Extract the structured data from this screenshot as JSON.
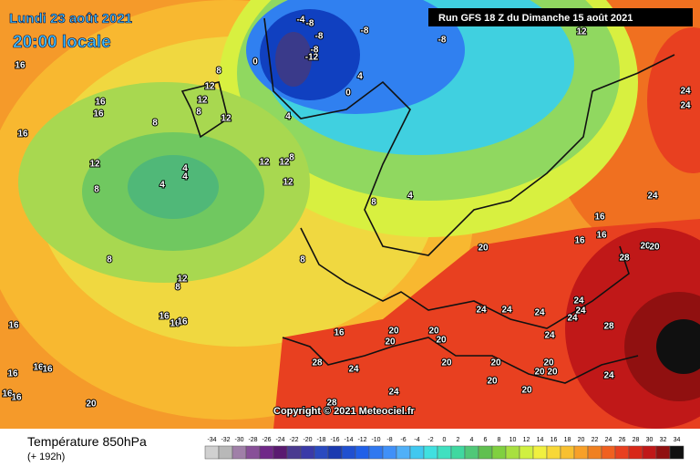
{
  "header": {
    "date": "Lundi 23 août 2021",
    "time": "20:00 locale",
    "run": "Run GFS 18 Z du Dimanche 15 août 2021"
  },
  "copyright": "Copyright © 2021 Meteociel.fr",
  "footer": {
    "title": "Température 850hPa",
    "lead": "(+ 192h)"
  },
  "legend": {
    "ticks": [
      -34,
      -32,
      -30,
      -28,
      -26,
      -24,
      -22,
      -20,
      -18,
      -16,
      -14,
      -12,
      -10,
      -8,
      -6,
      -4,
      -2,
      0,
      2,
      4,
      6,
      8,
      10,
      12,
      14,
      16,
      18,
      20,
      22,
      24,
      26,
      28,
      30,
      32,
      34
    ],
    "colors": [
      "#d0d0d0",
      "#b8b8b8",
      "#a080a8",
      "#885098",
      "#702888",
      "#5a1a70",
      "#4a3a90",
      "#3a3aa8",
      "#2a4ac0",
      "#1a3ab0",
      "#2050d0",
      "#2060e8",
      "#3078f0",
      "#4090f8",
      "#50b0f8",
      "#40c8f0",
      "#40e0e0",
      "#40e0c0",
      "#40d8a0",
      "#50c878",
      "#60c050",
      "#80d040",
      "#a8e040",
      "#d0f040",
      "#f0f040",
      "#f8d838",
      "#f8c030",
      "#f8a028",
      "#f08020",
      "#f06020",
      "#e84020",
      "#d82818",
      "#c01818",
      "#901010",
      "#101010"
    ]
  },
  "map_labels": [
    16,
    16,
    16,
    16,
    12,
    8,
    8,
    16,
    16,
    16,
    16,
    16,
    16,
    20,
    16,
    16,
    16,
    8,
    12,
    8,
    12,
    12,
    12,
    8,
    8,
    4,
    4,
    4,
    12,
    12,
    12,
    8,
    8,
    0,
    4,
    0,
    4,
    -4,
    -8,
    -8,
    -8,
    -12,
    -8,
    -8,
    4,
    8,
    16,
    20,
    20,
    20,
    20,
    20,
    24,
    20,
    24,
    24,
    24,
    24,
    24,
    28,
    24,
    28,
    24,
    24,
    20,
    20,
    20,
    20,
    20,
    20,
    24,
    16,
    16,
    16,
    24,
    20,
    20,
    28,
    12,
    24,
    24,
    28
  ]
}
